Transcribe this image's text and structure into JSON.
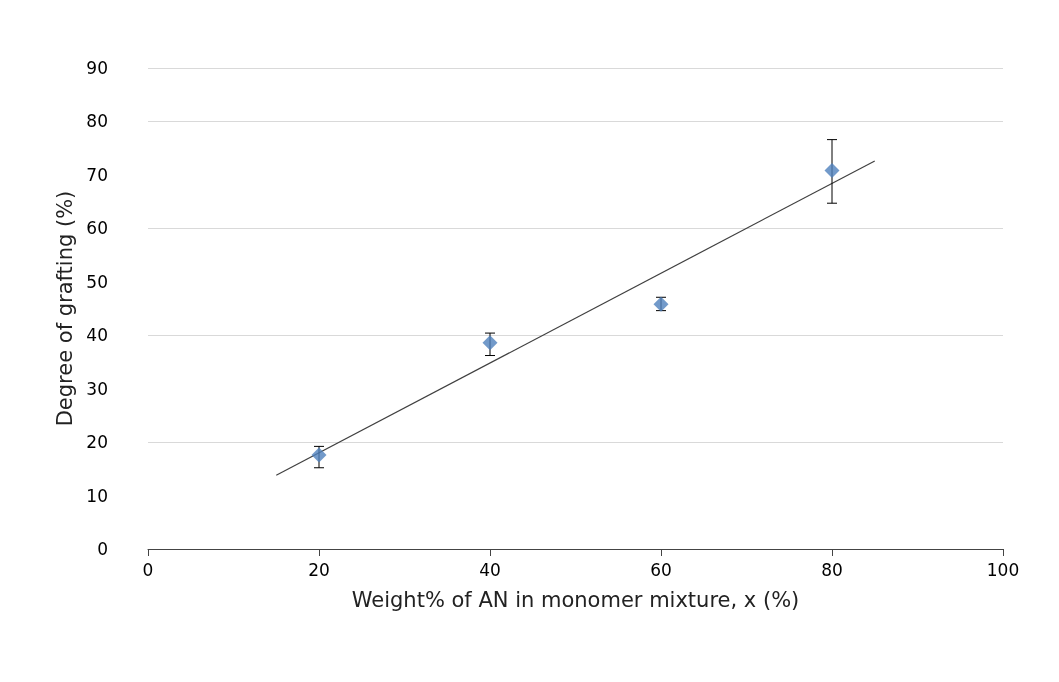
{
  "chart_data": {
    "type": "scatter",
    "xlabel": "Weight% of AN in monomer mixture, x (%)",
    "ylabel": "Degree of grafting (%)",
    "xlim": [
      0,
      100
    ],
    "xticks": [
      0,
      20,
      40,
      60,
      80,
      100
    ],
    "ylim": [
      0,
      90
    ],
    "yticks": [
      0,
      10,
      20,
      30,
      40,
      50,
      60,
      70,
      80,
      90
    ],
    "grid": "y",
    "series": [
      {
        "marker": "diamond",
        "color": "#4f81bd",
        "x": [
          20,
          40,
          60,
          80
        ],
        "values": [
          17.6,
          38.6,
          45.8,
          70.8
        ],
        "errors": [
          [
            15.2,
            19.2
          ],
          [
            36.2,
            40.4
          ],
          [
            44.6,
            47.1
          ],
          [
            64.7,
            76.6
          ]
        ]
      },
      {
        "type": "line",
        "marker": "none",
        "color": "#404040",
        "x": [
          15,
          85
        ],
        "values": [
          13.8,
          72.6
        ]
      }
    ]
  }
}
